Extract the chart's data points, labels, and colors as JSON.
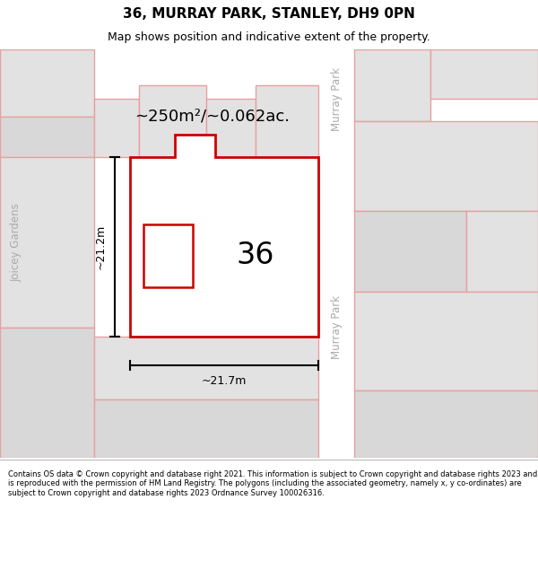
{
  "title": "36, MURRAY PARK, STANLEY, DH9 0PN",
  "subtitle": "Map shows position and indicative extent of the property.",
  "footer": "Contains OS data © Crown copyright and database right 2021. This information is subject to Crown copyright and database rights 2023 and is reproduced with the permission of HM Land Registry. The polygons (including the associated geometry, namely x, y co-ordinates) are subject to Crown copyright and database rights 2023 Ordnance Survey 100026316.",
  "area_text": "~250m²/~0.062ac.",
  "number_label": "36",
  "dim_h": "~21.2m",
  "dim_w": "~21.7m",
  "street_label_murray_top": "Murray Park",
  "street_label_murray_bot": "Murray Park",
  "side_label": "Joicey Gardens",
  "highlight_color": "#cc0000",
  "plot_outline_color": "#e8a0a0",
  "bg_block_color": "#e2e2e2",
  "bg_block_color2": "#d8d8d8",
  "road_color": "#ffffff",
  "map_bg": "#eeeeee",
  "figsize": [
    6.0,
    6.25
  ],
  "dpi": 100,
  "title_fontsize": 11,
  "subtitle_fontsize": 9,
  "footer_fontsize": 6.0
}
